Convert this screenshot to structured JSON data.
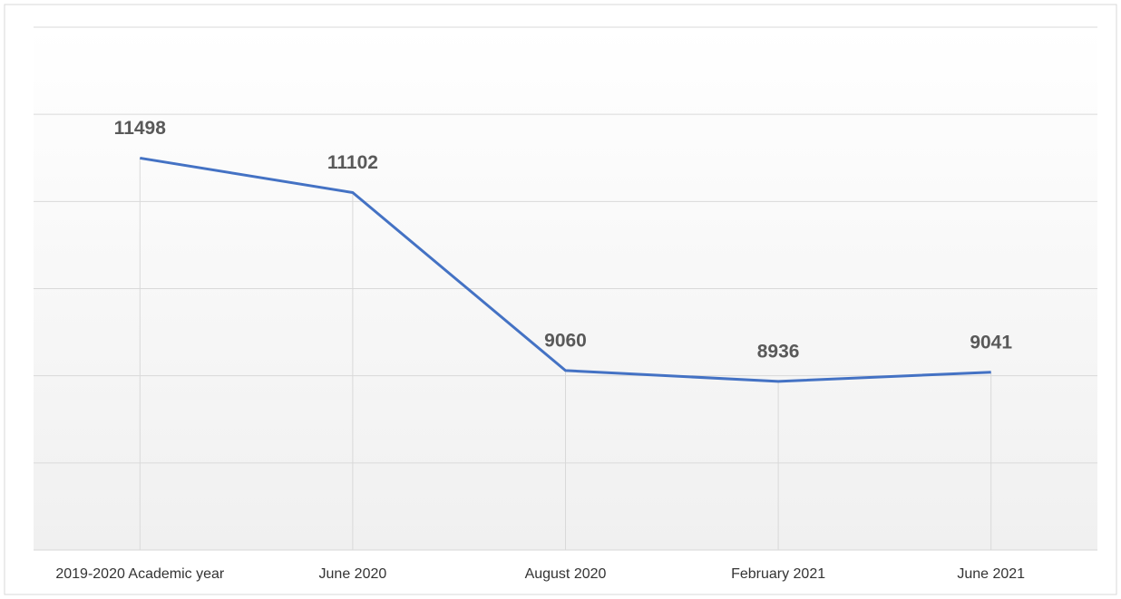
{
  "chart_data": {
    "type": "line",
    "categories": [
      "2019-2020 Academic year",
      "June 2020",
      "August 2020",
      "February 2021",
      "June 2021"
    ],
    "values": [
      11498,
      11102,
      9060,
      8936,
      9041
    ],
    "color": "#4472c4",
    "ylim": [
      7000,
      13000
    ],
    "yticks": [
      7000,
      8000,
      9000,
      10000,
      11000,
      12000,
      13000
    ],
    "grid": true,
    "drop_lines": true
  }
}
